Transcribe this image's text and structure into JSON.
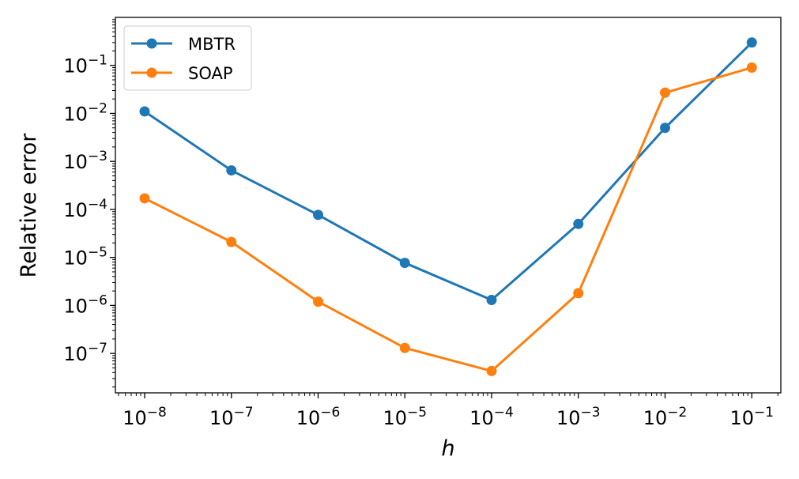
{
  "chart_data": {
    "type": "line",
    "xscale": "log",
    "yscale": "log",
    "xlabel": "h",
    "ylabel": "Relative error",
    "x": [
      1e-08,
      1e-07,
      1e-06,
      1e-05,
      0.0001,
      0.001,
      0.01,
      0.1
    ],
    "xlim": [
      4.6e-09,
      0.216
    ],
    "ylim": [
      1.51e-08,
      1.0
    ],
    "xticks": [
      {
        "base": "10",
        "exp": "−8",
        "value": 1e-08
      },
      {
        "base": "10",
        "exp": "−7",
        "value": 1e-07
      },
      {
        "base": "10",
        "exp": "−6",
        "value": 1e-06
      },
      {
        "base": "10",
        "exp": "−5",
        "value": 1e-05
      },
      {
        "base": "10",
        "exp": "−4",
        "value": 0.0001
      },
      {
        "base": "10",
        "exp": "−3",
        "value": 0.001
      },
      {
        "base": "10",
        "exp": "−2",
        "value": 0.01
      },
      {
        "base": "10",
        "exp": "−1",
        "value": 0.1
      }
    ],
    "yticks": [
      {
        "base": "10",
        "exp": "−7",
        "value": 1e-07
      },
      {
        "base": "10",
        "exp": "−6",
        "value": 1e-06
      },
      {
        "base": "10",
        "exp": "−5",
        "value": 1e-05
      },
      {
        "base": "10",
        "exp": "−4",
        "value": 0.0001
      },
      {
        "base": "10",
        "exp": "−3",
        "value": 0.001
      },
      {
        "base": "10",
        "exp": "−2",
        "value": 0.01
      },
      {
        "base": "10",
        "exp": "−1",
        "value": 0.1
      }
    ],
    "legend_position": "top-left",
    "series": [
      {
        "name": "MBTR",
        "color": "#1f77b4",
        "values": [
          0.011,
          0.00065,
          7.7e-05,
          7.7e-06,
          1.3e-06,
          5e-05,
          0.005,
          0.3
        ]
      },
      {
        "name": "SOAP",
        "color": "#ff7f0e",
        "values": [
          0.00017,
          2.1e-05,
          1.2e-06,
          1.3e-07,
          4.3e-08,
          1.8e-06,
          0.027,
          0.09
        ]
      }
    ]
  }
}
